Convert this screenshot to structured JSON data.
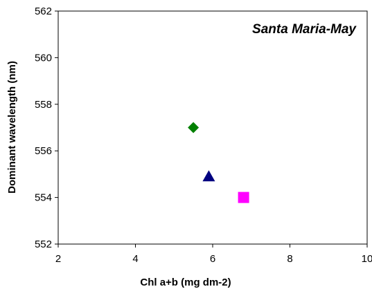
{
  "chart_data": {
    "type": "scatter",
    "title": "",
    "annotation": "Santa Maria-May",
    "xlabel": "Chl a+b (mg dm-2)",
    "ylabel": "Dominant wavelength (nm)",
    "xlim": [
      2,
      10
    ],
    "ylim": [
      552,
      562
    ],
    "xticks": [
      "2",
      "4",
      "6",
      "8",
      "10"
    ],
    "yticks": [
      "552",
      "554",
      "556",
      "558",
      "560",
      "562"
    ],
    "grid": false,
    "legend": "none",
    "series": [
      {
        "marker": "diamond",
        "color": "#008000",
        "points": [
          {
            "x": 5.5,
            "y": 557.0
          }
        ]
      },
      {
        "marker": "triangle",
        "color": "#000080",
        "points": [
          {
            "x": 5.9,
            "y": 554.9
          }
        ]
      },
      {
        "marker": "square",
        "color": "#ff00ff",
        "points": [
          {
            "x": 6.8,
            "y": 554.0
          }
        ]
      }
    ]
  }
}
